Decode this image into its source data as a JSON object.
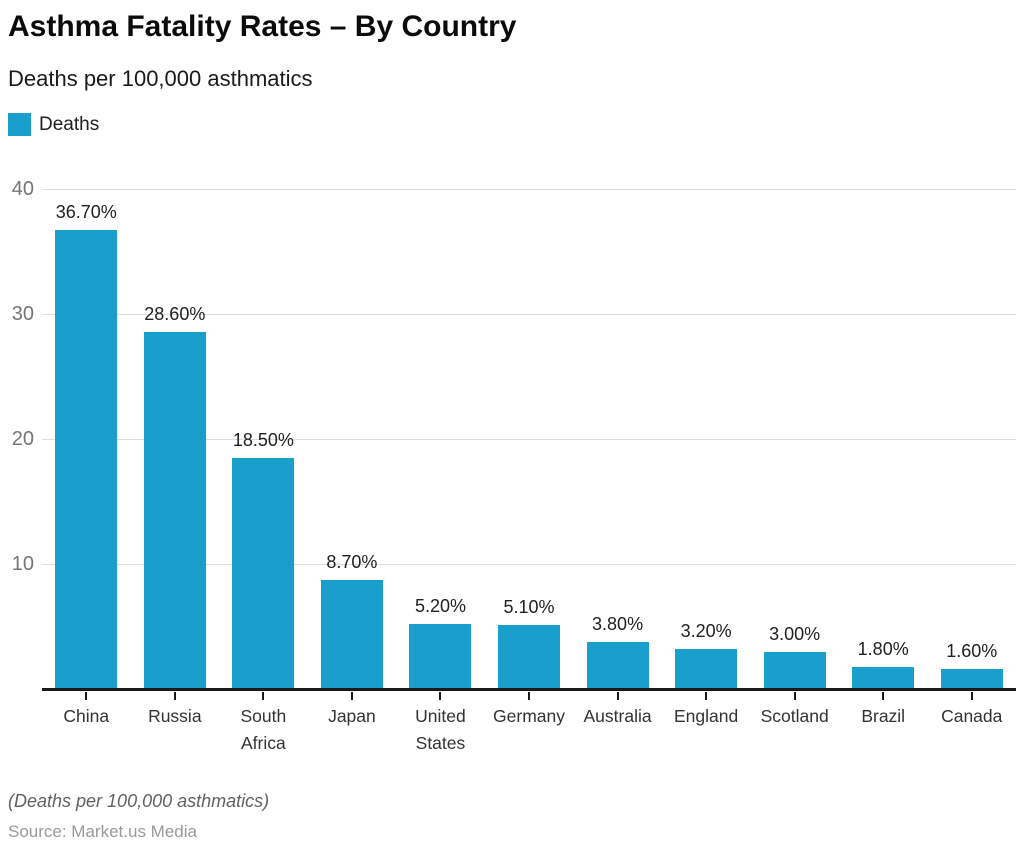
{
  "header": {
    "title": "Asthma Fatality Rates – By Country",
    "subtitle": "Deaths per 100,000 asthmatics"
  },
  "legend": {
    "label": "Deaths",
    "swatch_color": "#1a9fcd"
  },
  "chart_data": {
    "type": "bar",
    "title": "Asthma Fatality Rates – By Country",
    "subtitle": "Deaths per 100,000 asthmatics",
    "series_name": "Deaths",
    "categories": [
      "China",
      "Russia",
      "South Africa",
      "Japan",
      "United States",
      "Germany",
      "Australia",
      "England",
      "Scotland",
      "Brazil",
      "Canada"
    ],
    "values": [
      36.7,
      28.6,
      18.5,
      8.7,
      5.2,
      5.1,
      3.8,
      3.2,
      3.0,
      1.8,
      1.6
    ],
    "value_labels": [
      "36.70%",
      "28.60%",
      "18.50%",
      "8.70%",
      "5.20%",
      "5.10%",
      "3.80%",
      "3.20%",
      "3.00%",
      "1.80%",
      "1.60%"
    ],
    "xlabel": "",
    "ylabel": "",
    "ylim": [
      0,
      40
    ],
    "yticks": [
      40,
      30,
      20,
      10
    ],
    "grid": true,
    "legend_position": "top-left",
    "bar_color": "#1a9fcd",
    "gridline_color": "#dedede",
    "axis_color": "#1a1a1a"
  },
  "footer": {
    "note": "(Deaths per 100,000 asthmatics)",
    "source": "Source: Market.us Media"
  }
}
